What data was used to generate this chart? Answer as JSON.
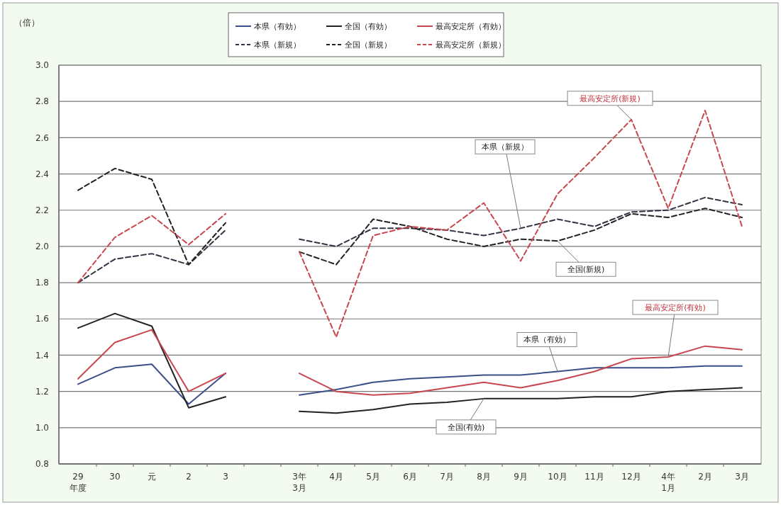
{
  "chart_data": {
    "type": "line",
    "ylabel": "（倍）",
    "categories": [
      "29\n年度",
      "30",
      "元",
      "2",
      "3",
      null,
      "3年\n3月",
      "4月",
      "5月",
      "6月",
      "7月",
      "8月",
      "9月",
      "10月",
      "11月",
      "12月",
      "4年\n1月",
      "2月",
      "3月"
    ],
    "ylim": [
      0.8,
      3.0
    ],
    "yticks": [
      {
        "value": 0.8,
        "label": "0.8"
      },
      {
        "value": 1.0,
        "label": "1.0"
      },
      {
        "value": 1.2,
        "label": "1.2"
      },
      {
        "value": 1.4,
        "label": "1.4"
      },
      {
        "value": 1.6,
        "label": "1.6"
      },
      {
        "value": 1.8,
        "label": "1.8"
      },
      {
        "value": 2.0,
        "label": "2.0"
      },
      {
        "value": 2.2,
        "label": "2.2"
      },
      {
        "value": 2.4,
        "label": "2.4"
      },
      {
        "value": 2.6,
        "label": "2.6"
      },
      {
        "value": 2.8,
        "label": "2.8"
      },
      {
        "value": 3.0,
        "label": "3.0"
      }
    ],
    "grid": "y",
    "legend": "top",
    "series": [
      {
        "name": "本県（有効）",
        "color": "#3d4f8a",
        "line_style": "solid",
        "values": [
          1.24,
          1.33,
          1.35,
          1.13,
          1.3,
          null,
          1.18,
          1.21,
          1.25,
          1.27,
          1.28,
          1.29,
          1.29,
          1.31,
          1.33,
          1.33,
          1.33,
          1.34,
          1.34
        ]
      },
      {
        "name": "全国（有効）",
        "color": "#222222",
        "line_style": "solid",
        "values": [
          1.55,
          1.63,
          1.56,
          1.11,
          1.17,
          null,
          1.09,
          1.08,
          1.1,
          1.13,
          1.14,
          1.16,
          1.16,
          1.16,
          1.17,
          1.17,
          1.2,
          1.21,
          1.22
        ]
      },
      {
        "name": "最高安定所（有効）",
        "color": "#c8474f",
        "line_style": "solid",
        "values": [
          1.27,
          1.47,
          1.54,
          1.2,
          1.3,
          null,
          1.3,
          1.2,
          1.18,
          1.19,
          1.22,
          1.25,
          1.22,
          1.26,
          1.31,
          1.38,
          1.39,
          1.45,
          1.43
        ]
      },
      {
        "name": "本県（新規）",
        "color": "#333344",
        "line_style": "dashed",
        "values": [
          1.8,
          1.93,
          1.96,
          1.9,
          2.09,
          null,
          2.04,
          2.0,
          2.1,
          2.1,
          2.09,
          2.06,
          2.1,
          2.15,
          2.11,
          2.19,
          2.2,
          2.27,
          2.23
        ]
      },
      {
        "name": "全国（新規）",
        "color": "#222222",
        "line_style": "dashed",
        "values": [
          2.31,
          2.43,
          2.37,
          1.9,
          2.13,
          null,
          1.97,
          1.9,
          2.15,
          2.11,
          2.04,
          2.0,
          2.04,
          2.03,
          2.09,
          2.18,
          2.16,
          2.21,
          2.16
        ]
      },
      {
        "name": "最高安定所（新規）",
        "color": "#c8474f",
        "line_style": "dashed",
        "values": [
          1.8,
          2.05,
          2.17,
          2.01,
          2.18,
          null,
          1.97,
          1.5,
          2.06,
          2.11,
          2.09,
          2.24,
          1.92,
          2.29,
          2.49,
          2.7,
          2.21,
          2.75,
          2.11
        ]
      }
    ],
    "annotations": [
      {
        "text": "最高安定所(新規)",
        "x": "12月",
        "y": 2.7
      },
      {
        "text": "本県（新規）",
        "x": "9月",
        "y": 2.1
      },
      {
        "text": "全国(新規)",
        "x": "10月",
        "y": 2.03
      },
      {
        "text": "最高安定所(有効)",
        "x": "4年\n1月",
        "y": 1.39
      },
      {
        "text": "本県（有効）",
        "x": "10月",
        "y": 1.31
      },
      {
        "text": "全国(有効)",
        "x": "8月",
        "y": 1.16
      }
    ]
  }
}
